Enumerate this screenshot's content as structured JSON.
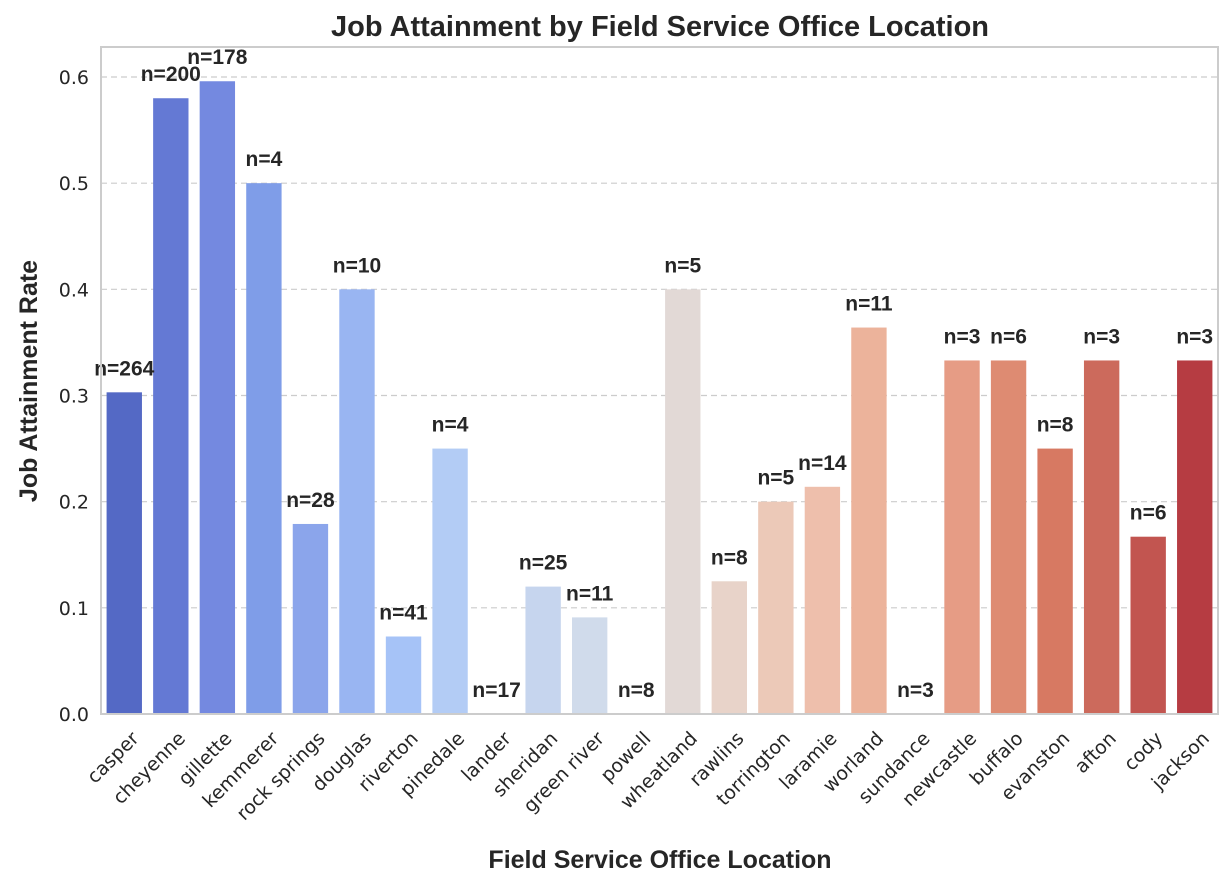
{
  "chart_data": {
    "type": "bar",
    "title": "Job Attainment by Field Service Office Location",
    "xlabel": "Field Service Office Location",
    "ylabel": "Job Attainment Rate",
    "ylim": [
      0,
      0.625
    ],
    "yticks": [
      0.0,
      0.1,
      0.2,
      0.3,
      0.4,
      0.5,
      0.6
    ],
    "ytick_labels": [
      "0.0",
      "0.1",
      "0.2",
      "0.3",
      "0.4",
      "0.5",
      "0.6"
    ],
    "grid": true,
    "categories": [
      "casper",
      "cheyenne",
      "gillette",
      "kemmerer",
      "rock springs",
      "douglas",
      "riverton",
      "pinedale",
      "lander",
      "sheridan",
      "green river",
      "powell",
      "wheatland",
      "rawlins",
      "torrington",
      "laramie",
      "worland",
      "sundance",
      "newcastle",
      "buffalo",
      "evanston",
      "afton",
      "cody",
      "jackson"
    ],
    "values": [
      0.303,
      0.58,
      0.596,
      0.5,
      0.179,
      0.4,
      0.073,
      0.25,
      0.0,
      0.12,
      0.091,
      0.0,
      0.4,
      0.125,
      0.2,
      0.214,
      0.364,
      0.0,
      0.333,
      0.333,
      0.25,
      0.333,
      0.167,
      0.333
    ],
    "annotations": [
      "n=264",
      "n=200",
      "n=178",
      "n=4",
      "n=28",
      "n=10",
      "n=41",
      "n=4",
      "n=17",
      "n=25",
      "n=11",
      "n=8",
      "n=5",
      "n=8",
      "n=5",
      "n=14",
      "n=11",
      "n=3",
      "n=3",
      "n=6",
      "n=8",
      "n=3",
      "n=6",
      "n=3"
    ],
    "colors": [
      "#5469c5",
      "#6479d4",
      "#7489e0",
      "#7f9de8",
      "#8ba5eb",
      "#99b5f2",
      "#a6c3f7",
      "#b3ccf5",
      "#bfd3f6",
      "#c6d5ee",
      "#d0dbeb",
      "#d9dce1",
      "#e2d9d6",
      "#e8d3c9",
      "#ecc9b8",
      "#eebfac",
      "#ecb39b",
      "#e9a48a",
      "#e69c85",
      "#de8b72",
      "#d77962",
      "#cc6a5c",
      "#c25550",
      "#b63c42"
    ]
  }
}
